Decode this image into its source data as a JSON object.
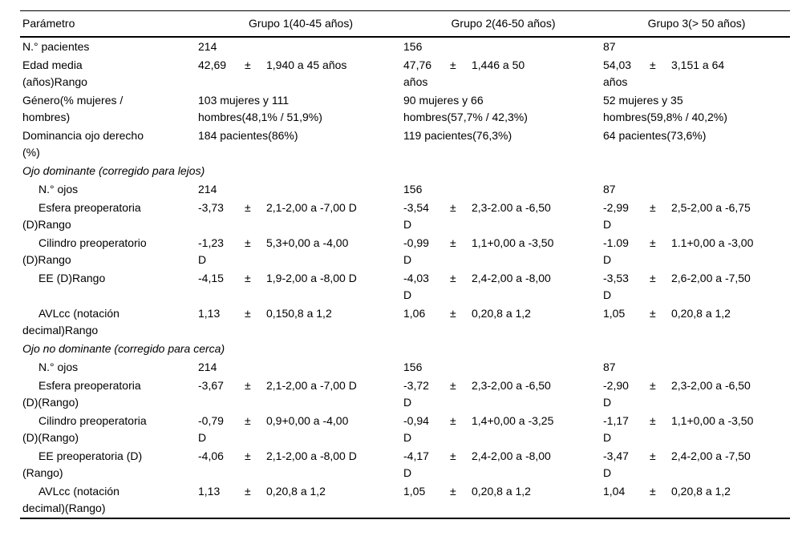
{
  "page": {
    "background_color": "#ffffff",
    "text_color": "#000000",
    "rule_color": "#000000"
  },
  "table": {
    "header": {
      "param": "Parámetro",
      "groups": [
        "Grupo 1(40-45 años)",
        "Grupo 2(46-50 años)",
        "Grupo 3(> 50 años)"
      ]
    },
    "rows": [
      {
        "kind": "data",
        "indent": false,
        "label": "N.° pacientes",
        "cells": [
          {
            "text": "214"
          },
          {
            "text": "156"
          },
          {
            "text": "87"
          }
        ]
      },
      {
        "kind": "data",
        "indent": false,
        "label": "Edad media\n(años)Rango",
        "cells": [
          {
            "value": "42,69",
            "pm": "±",
            "range": "1,940 a 45 años"
          },
          {
            "value": "47,76",
            "pm": "±",
            "range": "1,446 a 50\naños"
          },
          {
            "value": "54,03",
            "pm": "±",
            "range": "3,151 a 64\naños"
          }
        ]
      },
      {
        "kind": "data",
        "indent": false,
        "label": "Género(% mujeres /\nhombres)",
        "cells": [
          {
            "text": "103 mujeres y 111\nhombres(48,1% / 51,9%)"
          },
          {
            "text": "90 mujeres y 66\nhombres(57,7% / 42,3%)"
          },
          {
            "text": "52 mujeres y 35\nhombres(59,8% / 40,2%)"
          }
        ]
      },
      {
        "kind": "data",
        "indent": false,
        "label": "Dominancia ojo derecho\n(%)",
        "cells": [
          {
            "text": "184 pacientes(86%)"
          },
          {
            "text": "119 pacientes(76,3%)"
          },
          {
            "text": "64 pacientes(73,6%)"
          }
        ]
      },
      {
        "kind": "section",
        "label": "Ojo dominante (corregido para lejos)"
      },
      {
        "kind": "data",
        "indent": true,
        "label": "N.° ojos",
        "cells": [
          {
            "text": "214"
          },
          {
            "text": "156"
          },
          {
            "text": "87"
          }
        ]
      },
      {
        "kind": "data",
        "indent": true,
        "label": "Esfera preoperatoria\n(D)Rango",
        "cells": [
          {
            "value": "-3,73",
            "pm": "±",
            "range": "2,1-2,00 a -7,00 D"
          },
          {
            "value": "-3,54",
            "pm": "±",
            "range": "2,3-2.00 a -6,50\nD"
          },
          {
            "value": "-2,99",
            "pm": "±",
            "range": "2,5-2,00 a -6,75\nD"
          }
        ]
      },
      {
        "kind": "data",
        "indent": true,
        "label": "Cilindro preoperatorio\n(D)Rango",
        "cells": [
          {
            "value": "-1,23",
            "pm": "±",
            "range": "5,3+0,00 a -4,00\nD"
          },
          {
            "value": "-0,99",
            "pm": "±",
            "range": "1,1+0,00 a -3,50\nD"
          },
          {
            "value": "-1.09",
            "pm": "±",
            "range": "1.1+0,00 a -3,00\nD"
          }
        ]
      },
      {
        "kind": "data",
        "indent": true,
        "label": "EE (D)Rango",
        "cells": [
          {
            "value": "-4,15",
            "pm": "±",
            "range": "1,9-2,00 a -8,00 D"
          },
          {
            "value": "-4,03",
            "pm": "±",
            "range": "2,4-2,00 a -8,00\nD"
          },
          {
            "value": "-3,53",
            "pm": "±",
            "range": "2,6-2,00 a -7,50\nD"
          }
        ]
      },
      {
        "kind": "data",
        "indent": true,
        "label": "AVLcc (notación\ndecimal)Rango",
        "cells": [
          {
            "value": "1,13",
            "pm": "±",
            "range": "0,150,8 a 1,2"
          },
          {
            "value": "1,06",
            "pm": "±",
            "range": "0,20,8 a 1,2"
          },
          {
            "value": "1,05",
            "pm": "±",
            "range": "0,20,8 a 1,2"
          }
        ]
      },
      {
        "kind": "section",
        "label": "Ojo no dominante (corregido para cerca)"
      },
      {
        "kind": "data",
        "indent": true,
        "label": "N.° ojos",
        "cells": [
          {
            "text": "214"
          },
          {
            "text": "156"
          },
          {
            "text": "87"
          }
        ]
      },
      {
        "kind": "data",
        "indent": true,
        "label": "Esfera preoperatoria\n(D)(Rango)",
        "cells": [
          {
            "value": "-3,67",
            "pm": "±",
            "range": "2,1-2,00 a -7,00 D"
          },
          {
            "value": "-3,72",
            "pm": "±",
            "range": "2,3-2,00 a -6,50\nD"
          },
          {
            "value": "-2,90",
            "pm": "±",
            "range": "2,3-2,00 a -6,50\nD"
          }
        ]
      },
      {
        "kind": "data",
        "indent": true,
        "label": "Cilindro preoperatoria\n(D)(Rango)",
        "cells": [
          {
            "value": "-0,79",
            "pm": "±",
            "range": "0,9+0,00 a -4,00\nD"
          },
          {
            "value": "-0,94",
            "pm": "±",
            "range": "1,4+0,00 a -3,25\nD"
          },
          {
            "value": "-1,17",
            "pm": "±",
            "range": "1,1+0,00 a -3,50\nD"
          }
        ]
      },
      {
        "kind": "data",
        "indent": true,
        "label": "EE preoperatoria (D)\n(Rango)",
        "cells": [
          {
            "value": "-4,06",
            "pm": "±",
            "range": "2,1-2,00 a -8,00 D"
          },
          {
            "value": "-4,17",
            "pm": "±",
            "range": "2,4-2,00 a -8,00\nD"
          },
          {
            "value": "-3,47",
            "pm": "±",
            "range": "2,4-2,00 a -7,50\nD"
          }
        ]
      },
      {
        "kind": "data",
        "indent": true,
        "label": "AVLcc (notación\ndecimal)(Rango)",
        "cells": [
          {
            "value": "1,13",
            "pm": "±",
            "range": "0,20,8 a 1,2"
          },
          {
            "value": "1,05",
            "pm": "±",
            "range": "0,20,8 a 1,2"
          },
          {
            "value": "1,04",
            "pm": "±",
            "range": "0,20,8 a 1,2"
          }
        ]
      }
    ]
  }
}
